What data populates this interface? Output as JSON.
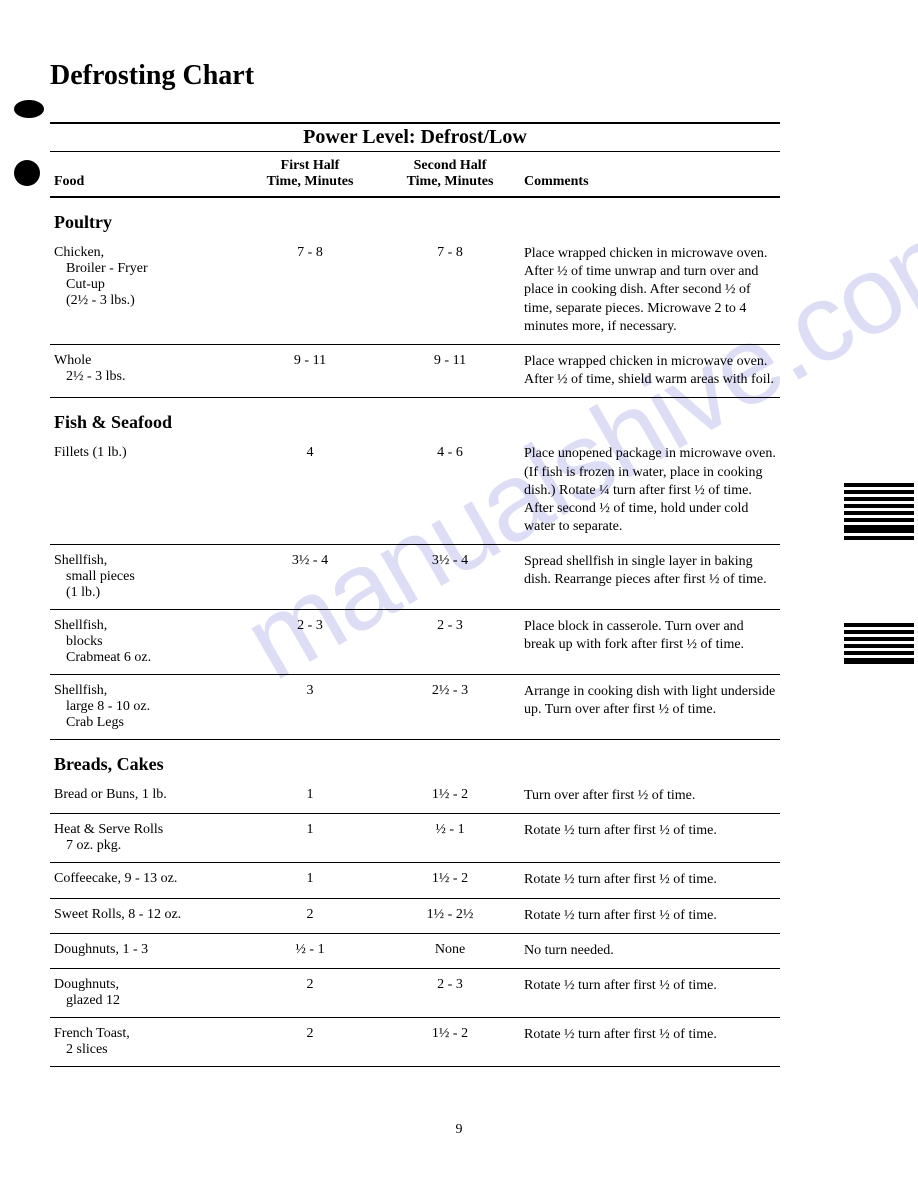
{
  "title": "Defrosting Chart",
  "power_level": "Power Level: Defrost/Low",
  "headers": {
    "food": "Food",
    "first_half": "First Half\nTime, Minutes",
    "second_half": "Second Half\nTime, Minutes",
    "comments": "Comments"
  },
  "sections": [
    {
      "name": "Poultry",
      "rows": [
        {
          "food": "Chicken,\n  Broiler - Fryer\n  Cut-up\n  (2½ - 3 lbs.)",
          "first": "7 - 8",
          "second": "7 - 8",
          "comments": "Place wrapped chicken in microwave oven. After ½ of time unwrap and turn over and place in cooking dish. After second ½ of time, separate pieces. Microwave 2 to 4 minutes more, if necessary."
        },
        {
          "food": "Whole\n  2½ - 3 lbs.",
          "first": "9 - 11",
          "second": "9 - 11",
          "comments": "Place wrapped chicken in microwave oven. After ½ of time, shield warm areas with foil."
        }
      ]
    },
    {
      "name": "Fish & Seafood",
      "rows": [
        {
          "food": "Fillets (1 lb.)",
          "first": "4",
          "second": "4 - 6",
          "comments": "Place unopened package in microwave oven. (If fish is frozen in water, place in cooking dish.) Rotate ¼ turn after first ½ of time. After second ½ of time, hold under cold water to separate."
        },
        {
          "food": "Shellfish,\n  small pieces\n  (1 lb.)",
          "first": "3½ - 4",
          "second": "3½ - 4",
          "comments": "Spread shellfish in single layer in baking dish. Rearrange pieces after first ½ of time."
        },
        {
          "food": "Shellfish,\n  blocks\n  Crabmeat 6 oz.",
          "first": "2 - 3",
          "second": "2 - 3",
          "comments": "Place block in casserole. Turn over and break up with fork after first ½ of time."
        },
        {
          "food": "Shellfish,\n  large 8 - 10 oz.\n  Crab Legs",
          "first": "3",
          "second": "2½ - 3",
          "comments": "Arrange in cooking dish with light underside up. Turn over after first ½ of time."
        }
      ]
    },
    {
      "name": "Breads, Cakes",
      "rows": [
        {
          "food": "Bread or Buns, 1 lb.",
          "first": "1",
          "second": "1½ - 2",
          "comments": "Turn over after first ½ of time."
        },
        {
          "food": "Heat & Serve Rolls\n  7 oz. pkg.",
          "first": "1",
          "second": "½ - 1",
          "comments": "Rotate ½ turn after first ½ of time."
        },
        {
          "food": "Coffeecake, 9 - 13 oz.",
          "first": "1",
          "second": "1½ - 2",
          "comments": "Rotate ½ turn after first ½ of time."
        },
        {
          "food": "Sweet Rolls, 8 - 12 oz.",
          "first": "2",
          "second": "1½ - 2½",
          "comments": "Rotate ½ turn after first ½ of time."
        },
        {
          "food": "Doughnuts, 1 - 3",
          "first": "½ - 1",
          "second": "None",
          "comments": "No turn needed."
        },
        {
          "food": "Doughnuts,\n  glazed 12",
          "first": "2",
          "second": "2 - 3",
          "comments": "Rotate ½ turn after first ½ of time."
        },
        {
          "food": "French Toast,\n  2 slices",
          "first": "2",
          "second": "1½ - 2",
          "comments": "Rotate ½ turn after first ½ of time."
        }
      ]
    }
  ],
  "page_number": "9",
  "watermark": "manualshive.com"
}
